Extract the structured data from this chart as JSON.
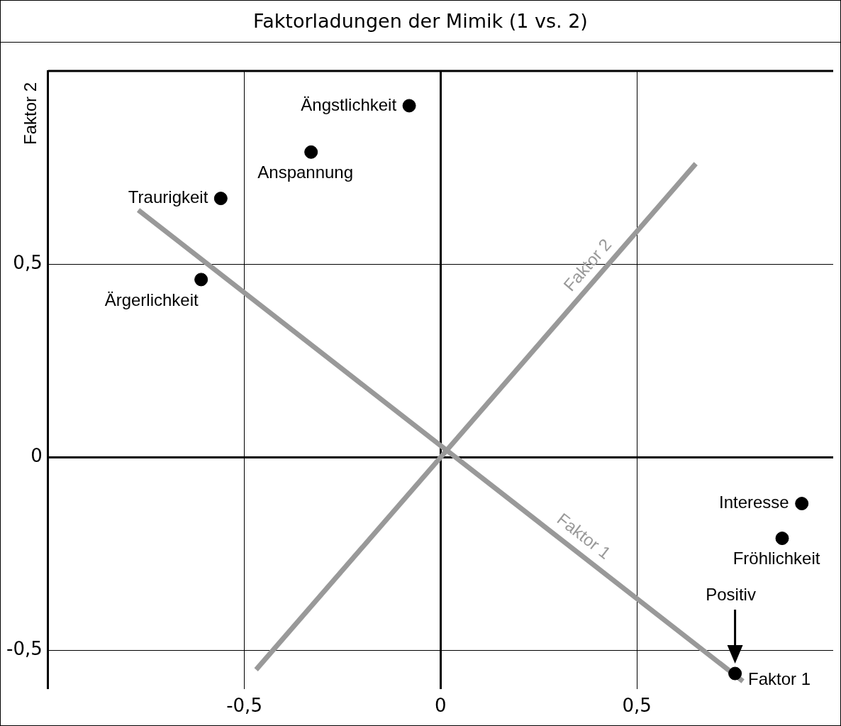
{
  "chart_data": {
    "type": "scatter",
    "title": "Faktorladungen der Mimik (1 vs. 2)",
    "xlabel": "Faktor 1",
    "ylabel": "Faktor 2",
    "xlim": [
      -1,
      1
    ],
    "ylim": [
      -0.6,
      1
    ],
    "xticks": [
      {
        "value": -0.5,
        "label": "-0,5"
      },
      0,
      {
        "value": 0.5,
        "label": "0,5"
      }
    ],
    "yticks": [
      {
        "value": -0.5,
        "label": "-0,5"
      },
      0,
      {
        "value": 0.5,
        "label": "0,5"
      }
    ],
    "annotations": [
      "Positiv"
    ],
    "grid": true,
    "legend": false,
    "marker": "circle",
    "series": [
      {
        "name": "Ängstlichkeit",
        "color": "#000000",
        "x": [
          -0.08
        ],
        "values": [
          0.91
        ]
      },
      {
        "name": "Anspannung",
        "color": "#000000",
        "x": [
          -0.33
        ],
        "values": [
          0.79
        ]
      },
      {
        "name": "Traurigkeit",
        "color": "#000000",
        "x": [
          -0.56
        ],
        "values": [
          0.67
        ]
      },
      {
        "name": "Ärgerlichkeit",
        "color": "#000000",
        "x": [
          -0.61
        ],
        "values": [
          0.46
        ]
      },
      {
        "name": "Interesse",
        "color": "#000000",
        "x": [
          0.92
        ],
        "values": [
          -0.12
        ]
      },
      {
        "name": "Fröhlichkeit",
        "color": "#000000",
        "x": [
          0.87
        ],
        "values": [
          -0.21
        ]
      },
      {
        "color": "#000000",
        "x": [
          0.75
        ],
        "values": [
          -0.56
        ]
      },
      {
        "name": "Faktor 1",
        "type": "line",
        "marker": "none",
        "color": "#999999",
        "x": [
          -0.77,
          0.77
        ],
        "values": [
          0.64,
          -0.58
        ]
      },
      {
        "name": "Faktor 2",
        "type": "line",
        "marker": "none",
        "color": "#999999",
        "x": [
          -0.47,
          0.65
        ],
        "values": [
          -0.55,
          0.76
        ]
      }
    ]
  }
}
